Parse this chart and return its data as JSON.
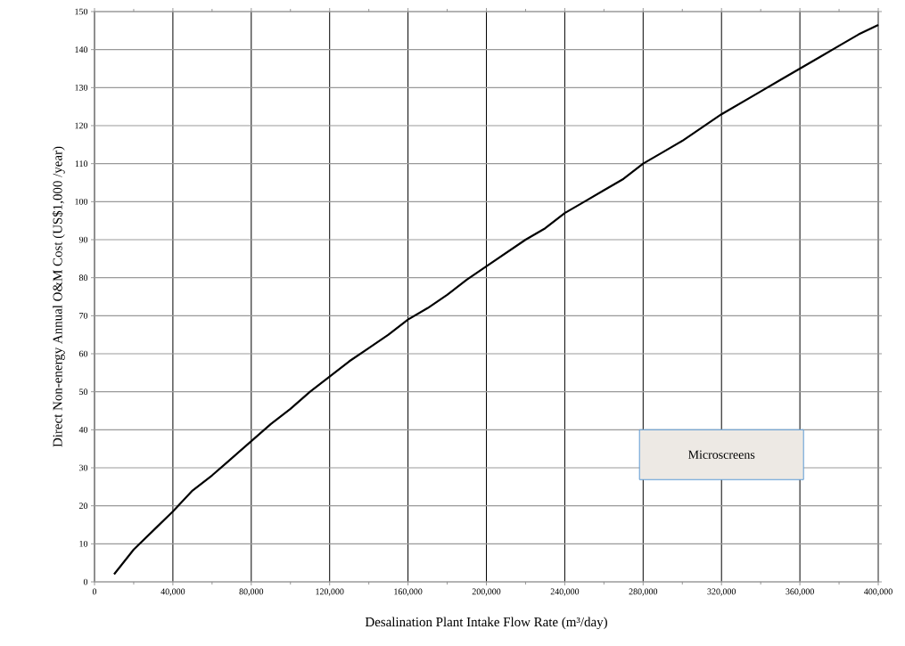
{
  "chart_data": {
    "type": "line",
    "xlabel": "Desalination Plant Intake Flow Rate (m³/day)",
    "ylabel": "Direct Non-energy Annual O&M Cost  (US$1,000 /year)",
    "annotations": [
      "Microscreens"
    ],
    "x": [
      10000,
      20000,
      30000,
      40000,
      50000,
      60000,
      70000,
      80000,
      90000,
      100000,
      110000,
      120000,
      130000,
      140000,
      150000,
      160000,
      170000,
      180000,
      190000,
      200000,
      210000,
      220000,
      230000,
      240000,
      250000,
      260000,
      270000,
      280000,
      290000,
      300000,
      310000,
      320000,
      330000,
      340000,
      350000,
      360000,
      370000,
      380000,
      390000,
      400000
    ],
    "series": [
      {
        "color": "#000000",
        "values": [
          2,
          8.5,
          13.5,
          18.5,
          24,
          28,
          32.5,
          37,
          41.5,
          45.5,
          50,
          54,
          58,
          61.5,
          65,
          69,
          72,
          75.5,
          79.5,
          83,
          86.5,
          90,
          93,
          97,
          100,
          103,
          106,
          110,
          113,
          116,
          119.5,
          123,
          126,
          129,
          132,
          135,
          138,
          141,
          144,
          146.5
        ]
      }
    ],
    "xlim": [
      0,
      400000
    ],
    "ylim": [
      0,
      150
    ],
    "xticks": [
      {
        "value": 0,
        "label": "0"
      },
      {
        "value": 20000,
        "label": null
      },
      {
        "value": 40000,
        "label": "40,000"
      },
      {
        "value": 60000,
        "label": null
      },
      {
        "value": 80000,
        "label": "80,000"
      },
      {
        "value": 100000,
        "label": null
      },
      {
        "value": 120000,
        "label": "120,000"
      },
      {
        "value": 140000,
        "label": null
      },
      {
        "value": 160000,
        "label": "160,000"
      },
      {
        "value": 180000,
        "label": null
      },
      {
        "value": 200000,
        "label": "200,000"
      },
      {
        "value": 220000,
        "label": null
      },
      {
        "value": 240000,
        "label": "240,000"
      },
      {
        "value": 260000,
        "label": null
      },
      {
        "value": 280000,
        "label": "280,000"
      },
      {
        "value": 300000,
        "label": null
      },
      {
        "value": 320000,
        "label": "320,000"
      },
      {
        "value": 340000,
        "label": null
      },
      {
        "value": 360000,
        "label": "360,000"
      },
      {
        "value": 380000,
        "label": null
      },
      {
        "value": 400000,
        "label": "400,000"
      }
    ],
    "yticks": [
      0,
      10,
      20,
      30,
      40,
      50,
      60,
      70,
      80,
      90,
      100,
      110,
      120,
      130,
      140,
      150
    ],
    "grid": true,
    "marker": "none",
    "line_style": "solid"
  }
}
